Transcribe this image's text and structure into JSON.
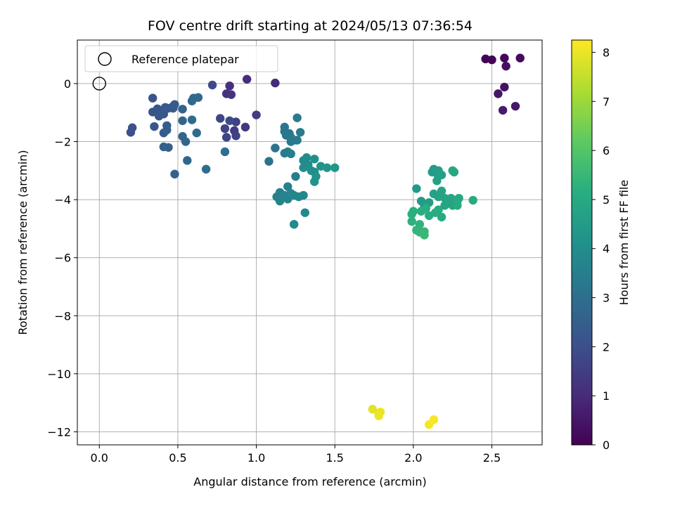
{
  "chart_data": {
    "type": "scatter",
    "title": "FOV centre drift starting at 2024/05/13 07:36:54",
    "xlabel": "Angular distance from reference (arcmin)",
    "ylabel": "Rotation from reference (arcmin)",
    "xlim": [
      -0.14,
      2.82
    ],
    "ylim": [
      -12.45,
      1.5
    ],
    "xticks": [
      0.0,
      0.5,
      1.0,
      1.5,
      2.0,
      2.5
    ],
    "xtick_labels": [
      "0.0",
      "0.5",
      "1.0",
      "1.5",
      "2.0",
      "2.5"
    ],
    "yticks": [
      0,
      -2,
      -4,
      -6,
      -8,
      -10,
      -12
    ],
    "ytick_labels": [
      "0",
      "−2",
      "−4",
      "−6",
      "−8",
      "−10",
      "−12"
    ],
    "grid": true,
    "legend": {
      "position": "top-left",
      "entries": [
        "Reference platepar"
      ]
    },
    "colorbar": {
      "label": "Hours from first FF file",
      "colormap": "viridis",
      "range": [
        0,
        8.25
      ],
      "ticks": [
        0,
        1,
        2,
        3,
        4,
        5,
        6,
        7,
        8
      ],
      "tick_labels": [
        "0",
        "1",
        "2",
        "3",
        "4",
        "5",
        "6",
        "7",
        "8"
      ]
    },
    "reference_point": {
      "x": 0.0,
      "y": 0.0
    },
    "series": [
      {
        "points": [
          {
            "x": 2.46,
            "y": 0.85,
            "c": 0.05
          },
          {
            "x": 2.5,
            "y": 0.82,
            "c": 0.1
          },
          {
            "x": 2.58,
            "y": 0.88,
            "c": 0.15
          },
          {
            "x": 2.68,
            "y": 0.88,
            "c": 0.2
          },
          {
            "x": 2.59,
            "y": 0.6,
            "c": 0.3
          },
          {
            "x": 2.58,
            "y": -0.12,
            "c": 0.4
          },
          {
            "x": 2.54,
            "y": -0.35,
            "c": 0.5
          },
          {
            "x": 2.65,
            "y": -0.78,
            "c": 0.55
          },
          {
            "x": 2.57,
            "y": -0.92,
            "c": 0.6
          },
          {
            "x": 1.12,
            "y": 0.02,
            "c": 1.0
          },
          {
            "x": 0.94,
            "y": 0.15,
            "c": 1.05
          },
          {
            "x": 0.83,
            "y": -0.08,
            "c": 1.1
          },
          {
            "x": 0.81,
            "y": -0.35,
            "c": 1.15
          },
          {
            "x": 0.84,
            "y": -0.38,
            "c": 1.2
          },
          {
            "x": 0.93,
            "y": -1.5,
            "c": 1.3
          },
          {
            "x": 0.86,
            "y": -1.62,
            "c": 1.4
          },
          {
            "x": 1.0,
            "y": -1.08,
            "c": 1.5
          },
          {
            "x": 0.87,
            "y": -1.32,
            "c": 1.55
          },
          {
            "x": 0.87,
            "y": -1.8,
            "c": 1.6
          },
          {
            "x": 0.8,
            "y": -1.55,
            "c": 1.65
          },
          {
            "x": 0.81,
            "y": -1.85,
            "c": 1.7
          },
          {
            "x": 0.77,
            "y": -1.2,
            "c": 1.75
          },
          {
            "x": 0.72,
            "y": -0.05,
            "c": 1.8
          },
          {
            "x": 0.83,
            "y": -1.28,
            "c": 1.85
          },
          {
            "x": 0.2,
            "y": -1.68,
            "c": 2.0
          },
          {
            "x": 0.21,
            "y": -1.52,
            "c": 2.05
          },
          {
            "x": 0.34,
            "y": -0.5,
            "c": 2.1
          },
          {
            "x": 0.34,
            "y": -0.98,
            "c": 2.1
          },
          {
            "x": 0.37,
            "y": -0.95,
            "c": 2.15
          },
          {
            "x": 0.38,
            "y": -1.12,
            "c": 2.2
          },
          {
            "x": 0.37,
            "y": -0.87,
            "c": 2.2
          },
          {
            "x": 0.41,
            "y": -1.05,
            "c": 2.25
          },
          {
            "x": 0.35,
            "y": -1.48,
            "c": 2.25
          },
          {
            "x": 0.42,
            "y": -0.82,
            "c": 2.3
          },
          {
            "x": 0.44,
            "y": -0.85,
            "c": 2.3
          },
          {
            "x": 0.47,
            "y": -0.78,
            "c": 2.35
          },
          {
            "x": 0.48,
            "y": -0.72,
            "c": 2.35
          },
          {
            "x": 0.47,
            "y": -0.85,
            "c": 2.4
          },
          {
            "x": 0.41,
            "y": -1.7,
            "c": 2.4
          },
          {
            "x": 0.43,
            "y": -1.6,
            "c": 2.45
          },
          {
            "x": 0.43,
            "y": -1.45,
            "c": 2.45
          },
          {
            "x": 0.41,
            "y": -2.18,
            "c": 2.5
          },
          {
            "x": 0.44,
            "y": -2.2,
            "c": 2.5
          },
          {
            "x": 0.48,
            "y": -3.12,
            "c": 2.55
          },
          {
            "x": 0.53,
            "y": -0.88,
            "c": 2.6
          },
          {
            "x": 0.53,
            "y": -1.28,
            "c": 2.6
          },
          {
            "x": 0.53,
            "y": -1.82,
            "c": 2.65
          },
          {
            "x": 0.55,
            "y": -2.0,
            "c": 2.7
          },
          {
            "x": 0.56,
            "y": -2.65,
            "c": 2.75
          },
          {
            "x": 0.59,
            "y": -0.6,
            "c": 2.75
          },
          {
            "x": 0.6,
            "y": -0.5,
            "c": 2.8
          },
          {
            "x": 0.63,
            "y": -0.48,
            "c": 2.8
          },
          {
            "x": 0.59,
            "y": -1.25,
            "c": 2.85
          },
          {
            "x": 0.62,
            "y": -1.7,
            "c": 2.9
          },
          {
            "x": 0.68,
            "y": -2.95,
            "c": 2.95
          },
          {
            "x": 0.8,
            "y": -2.35,
            "c": 3.0
          },
          {
            "x": 1.08,
            "y": -2.68,
            "c": 3.1
          },
          {
            "x": 1.12,
            "y": -2.22,
            "c": 3.15
          },
          {
            "x": 1.18,
            "y": -1.5,
            "c": 3.2
          },
          {
            "x": 1.18,
            "y": -1.65,
            "c": 3.2
          },
          {
            "x": 1.19,
            "y": -1.78,
            "c": 3.25
          },
          {
            "x": 1.21,
            "y": -1.72,
            "c": 3.25
          },
          {
            "x": 1.22,
            "y": -1.85,
            "c": 3.3
          },
          {
            "x": 1.22,
            "y": -2.0,
            "c": 3.3
          },
          {
            "x": 1.24,
            "y": -1.95,
            "c": 3.35
          },
          {
            "x": 1.26,
            "y": -1.95,
            "c": 3.35
          },
          {
            "x": 1.28,
            "y": -1.68,
            "c": 3.4
          },
          {
            "x": 1.26,
            "y": -1.18,
            "c": 3.4
          },
          {
            "x": 1.18,
            "y": -2.4,
            "c": 3.45
          },
          {
            "x": 1.2,
            "y": -2.35,
            "c": 3.45
          },
          {
            "x": 1.22,
            "y": -2.42,
            "c": 3.5
          },
          {
            "x": 1.25,
            "y": -3.2,
            "c": 3.5
          },
          {
            "x": 1.2,
            "y": -3.55,
            "c": 3.55
          },
          {
            "x": 1.15,
            "y": -3.75,
            "c": 3.6
          },
          {
            "x": 1.13,
            "y": -3.9,
            "c": 3.6
          },
          {
            "x": 1.15,
            "y": -4.05,
            "c": 3.65
          },
          {
            "x": 1.18,
            "y": -3.85,
            "c": 3.7
          },
          {
            "x": 1.2,
            "y": -3.98,
            "c": 3.7
          },
          {
            "x": 1.22,
            "y": -3.78,
            "c": 3.75
          },
          {
            "x": 1.24,
            "y": -3.85,
            "c": 3.75
          },
          {
            "x": 1.27,
            "y": -3.9,
            "c": 3.8
          },
          {
            "x": 1.3,
            "y": -3.85,
            "c": 3.8
          },
          {
            "x": 1.24,
            "y": -4.85,
            "c": 3.85
          },
          {
            "x": 1.31,
            "y": -4.45,
            "c": 3.9
          },
          {
            "x": 1.3,
            "y": -2.65,
            "c": 3.9
          },
          {
            "x": 1.32,
            "y": -2.55,
            "c": 3.95
          },
          {
            "x": 1.33,
            "y": -2.8,
            "c": 4.0
          },
          {
            "x": 1.3,
            "y": -2.9,
            "c": 4.0
          },
          {
            "x": 1.35,
            "y": -3.0,
            "c": 4.05
          },
          {
            "x": 1.37,
            "y": -2.6,
            "c": 4.1
          },
          {
            "x": 1.37,
            "y": -3.05,
            "c": 4.1
          },
          {
            "x": 1.38,
            "y": -3.2,
            "c": 4.15
          },
          {
            "x": 1.37,
            "y": -3.38,
            "c": 4.2
          },
          {
            "x": 1.41,
            "y": -2.85,
            "c": 4.2
          },
          {
            "x": 1.45,
            "y": -2.9,
            "c": 4.25
          },
          {
            "x": 1.5,
            "y": -2.9,
            "c": 4.3
          },
          {
            "x": 2.02,
            "y": -3.62,
            "c": 4.4
          },
          {
            "x": 2.05,
            "y": -4.05,
            "c": 4.45
          },
          {
            "x": 2.07,
            "y": -4.2,
            "c": 4.5
          },
          {
            "x": 2.1,
            "y": -4.1,
            "c": 4.5
          },
          {
            "x": 2.12,
            "y": -3.05,
            "c": 4.55
          },
          {
            "x": 2.13,
            "y": -2.95,
            "c": 4.55
          },
          {
            "x": 2.15,
            "y": -3.1,
            "c": 4.6
          },
          {
            "x": 2.16,
            "y": -3.0,
            "c": 4.6
          },
          {
            "x": 2.18,
            "y": -3.15,
            "c": 4.65
          },
          {
            "x": 2.15,
            "y": -3.35,
            "c": 4.65
          },
          {
            "x": 2.13,
            "y": -3.8,
            "c": 4.7
          },
          {
            "x": 2.16,
            "y": -3.9,
            "c": 4.7
          },
          {
            "x": 2.18,
            "y": -3.7,
            "c": 4.75
          },
          {
            "x": 2.2,
            "y": -3.95,
            "c": 4.75
          },
          {
            "x": 2.2,
            "y": -4.2,
            "c": 4.8
          },
          {
            "x": 2.22,
            "y": -4.1,
            "c": 4.8
          },
          {
            "x": 2.24,
            "y": -3.95,
            "c": 4.85
          },
          {
            "x": 2.25,
            "y": -4.2,
            "c": 4.85
          },
          {
            "x": 2.25,
            "y": -3.0,
            "c": 4.9
          },
          {
            "x": 2.26,
            "y": -3.05,
            "c": 4.9
          },
          {
            "x": 2.28,
            "y": -4.05,
            "c": 4.95
          },
          {
            "x": 2.29,
            "y": -3.95,
            "c": 4.95
          },
          {
            "x": 2.28,
            "y": -4.2,
            "c": 5.0
          },
          {
            "x": 2.38,
            "y": -4.02,
            "c": 5.0
          },
          {
            "x": 2.18,
            "y": -4.6,
            "c": 5.05
          },
          {
            "x": 2.16,
            "y": -4.35,
            "c": 5.05
          },
          {
            "x": 2.14,
            "y": -4.45,
            "c": 5.1
          },
          {
            "x": 2.1,
            "y": -4.55,
            "c": 5.1
          },
          {
            "x": 2.08,
            "y": -4.3,
            "c": 5.15
          },
          {
            "x": 2.05,
            "y": -4.4,
            "c": 5.15
          },
          {
            "x": 2.0,
            "y": -4.4,
            "c": 5.2
          },
          {
            "x": 1.99,
            "y": -4.5,
            "c": 5.2
          },
          {
            "x": 1.99,
            "y": -4.75,
            "c": 5.25
          },
          {
            "x": 2.04,
            "y": -4.85,
            "c": 5.3
          },
          {
            "x": 2.02,
            "y": -5.05,
            "c": 5.35
          },
          {
            "x": 2.04,
            "y": -5.12,
            "c": 5.4
          },
          {
            "x": 2.07,
            "y": -5.1,
            "c": 5.45
          },
          {
            "x": 2.07,
            "y": -5.22,
            "c": 5.5
          },
          {
            "x": 1.74,
            "y": -11.22,
            "c": 7.9
          },
          {
            "x": 1.78,
            "y": -11.38,
            "c": 7.95
          },
          {
            "x": 1.79,
            "y": -11.32,
            "c": 8.0
          },
          {
            "x": 1.78,
            "y": -11.45,
            "c": 8.05
          },
          {
            "x": 2.1,
            "y": -11.75,
            "c": 8.15
          },
          {
            "x": 2.13,
            "y": -11.58,
            "c": 8.2
          }
        ]
      }
    ]
  }
}
